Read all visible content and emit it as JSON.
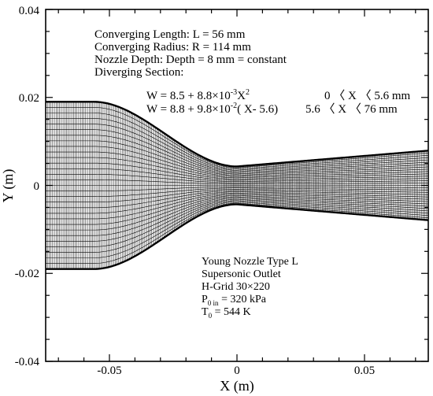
{
  "chart_data": {
    "type": "mesh",
    "xlabel": "X (m)",
    "ylabel": "Y (m)",
    "xlim": [
      -0.075,
      0.075
    ],
    "ylim": [
      -0.04,
      0.04
    ],
    "xticks": [
      -0.05,
      0,
      0.05
    ],
    "xtick_labels": [
      "-0.05",
      "0",
      "0.05"
    ],
    "yticks": [
      -0.04,
      -0.02,
      0,
      0.02,
      0.04
    ],
    "ytick_labels": [
      "-0.04",
      "-0.02",
      "0",
      "0.02",
      "0.04"
    ],
    "geometry": {
      "inlet_x": -0.075,
      "converging_start_x": -0.056,
      "inlet_half_height": 0.019,
      "converging_radius": 0.114,
      "throat_half_height": 0.0043,
      "outlet_x": 0.075,
      "outlet_half_height": 0.0079
    },
    "grid": {
      "i_lines": 220,
      "j_lines": 30
    }
  },
  "annotations": {
    "converging_length": "Converging Length: L =  56  mm",
    "converging_radius": "Converging Radius: R = 114 mm",
    "nozzle_depth": "Nozzle Depth: Depth   =   8    mm = constant",
    "diverging_section": "Diverging Section:",
    "formula1_prefix": "W = 8.5 + 8.8×10",
    "formula1_exp": "-3",
    "formula1_suffix": "X",
    "formula1_pow": "2",
    "formula1_range": "0 〈 X 〈 5.6 mm",
    "formula2_prefix": "W = 8.8 + 9.8×10",
    "formula2_exp": "-2",
    "formula2_suffix": "( X- 5.6)",
    "formula2_range": "5.6 〈 X 〈 76  mm",
    "info_title": "Young Nozzle Type L",
    "info_outlet": "Supersonic Outlet",
    "info_grid": "H-Grid 30×220",
    "info_p0_main": "P",
    "info_p0_sub": "0 in",
    "info_p0_value": " = 320 kPa",
    "info_t0_main": "T",
    "info_t0_sub": "0",
    "info_t0_value": " = 544 K"
  }
}
